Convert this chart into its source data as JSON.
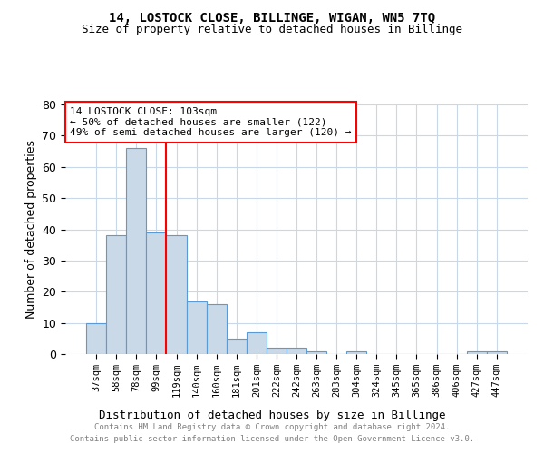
{
  "title": "14, LOSTOCK CLOSE, BILLINGE, WIGAN, WN5 7TQ",
  "subtitle": "Size of property relative to detached houses in Billinge",
  "xlabel": "Distribution of detached houses by size in Billinge",
  "ylabel": "Number of detached properties",
  "categories": [
    "37sqm",
    "58sqm",
    "78sqm",
    "99sqm",
    "119sqm",
    "140sqm",
    "160sqm",
    "181sqm",
    "201sqm",
    "222sqm",
    "242sqm",
    "263sqm",
    "283sqm",
    "304sqm",
    "324sqm",
    "345sqm",
    "365sqm",
    "386sqm",
    "406sqm",
    "427sqm",
    "447sqm"
  ],
  "values": [
    10,
    38,
    66,
    39,
    38,
    17,
    16,
    5,
    7,
    2,
    2,
    1,
    0,
    1,
    0,
    0,
    0,
    0,
    0,
    1,
    1
  ],
  "bar_color": "#c9d9e8",
  "bar_edge_color": "#5b9bd5",
  "red_line_x": 3.5,
  "annotation_text": "14 LOSTOCK CLOSE: 103sqm\n← 50% of detached houses are smaller (122)\n49% of semi-detached houses are larger (120) →",
  "annotation_box_color": "white",
  "annotation_box_edge_color": "red",
  "red_line_color": "red",
  "ylim": [
    0,
    80
  ],
  "yticks": [
    0,
    10,
    20,
    30,
    40,
    50,
    60,
    70,
    80
  ],
  "footer_line1": "Contains HM Land Registry data © Crown copyright and database right 2024.",
  "footer_line2": "Contains public sector information licensed under the Open Government Licence v3.0.",
  "background_color": "white",
  "grid_color": "#c8d8e8"
}
